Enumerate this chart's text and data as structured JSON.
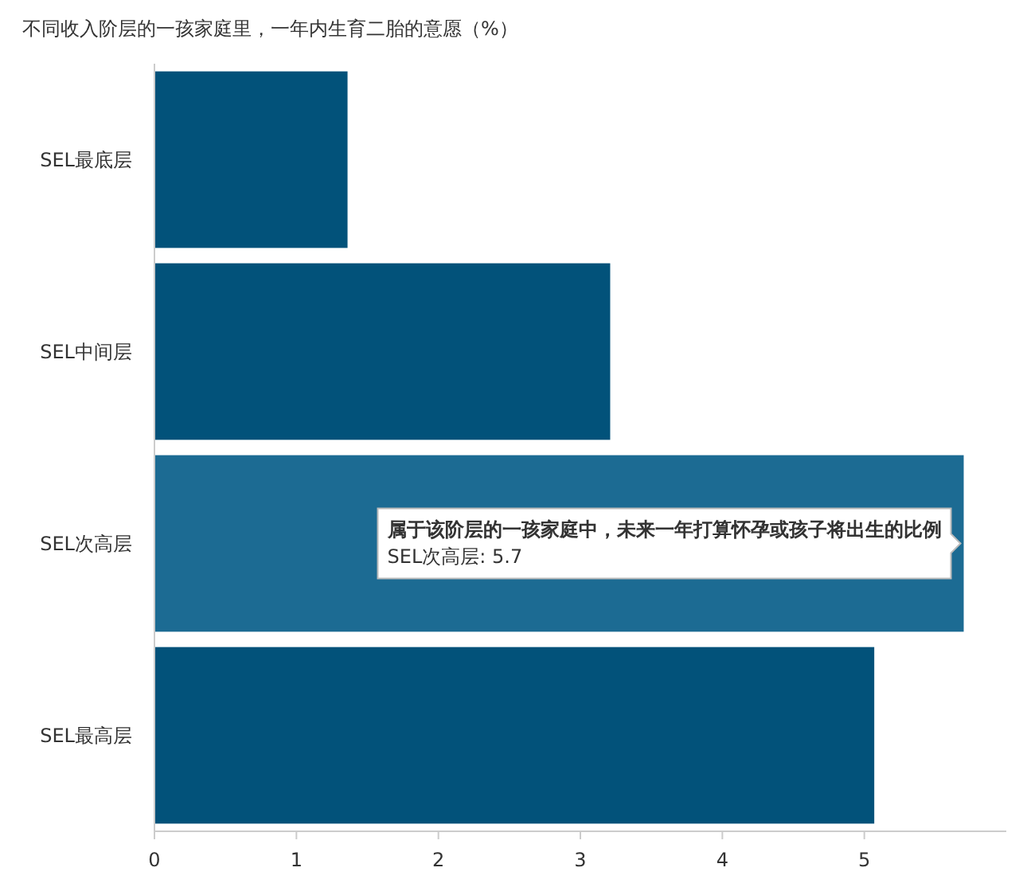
{
  "chart_data": {
    "type": "bar",
    "orientation": "horizontal",
    "title": "不同收入阶层的一孩家庭里，一年内生育二胎的意愿（%）",
    "categories": [
      "SEL最底层",
      "SEL中间层",
      "SEL次高层",
      "SEL最高层"
    ],
    "values": [
      1.36,
      3.21,
      5.7,
      5.07
    ],
    "colors": [
      "#02527a",
      "#02527a",
      "#1c6b93",
      "#02527a"
    ],
    "xlim": [
      0,
      6
    ],
    "xticks": [
      0,
      1,
      2,
      3,
      4,
      5
    ],
    "grid": false,
    "annotations": [
      {
        "text": "**属于该阶层的一孩家庭中，未来一年打算怀孕或孩子将出生的比例**",
        "x": 5.7,
        "y": "SEL次高层"
      },
      "SEL次高层: 5.7"
    ]
  }
}
